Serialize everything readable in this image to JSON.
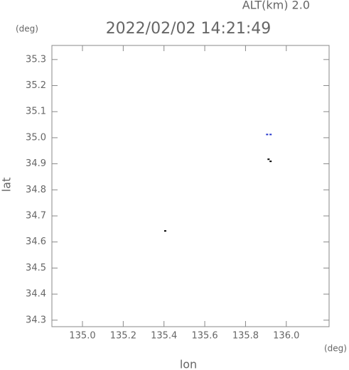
{
  "chart_data": {
    "type": "scatter",
    "title": "2022/02/02 14:21:49",
    "subtitle": "ALT(km) 2.0",
    "x_label": "lon",
    "y_label": "lat",
    "x_unit": "(deg)",
    "y_unit": "(deg)",
    "xlim": [
      134.85,
      136.21
    ],
    "ylim": [
      34.275,
      35.354
    ],
    "xticks": [
      {
        "value": 135,
        "label": "135.0"
      },
      135.2,
      135.4,
      135.6,
      135.8,
      {
        "value": 136,
        "label": "136.0"
      }
    ],
    "yticks": [
      34.3,
      34.4,
      34.5,
      34.6,
      34.7,
      34.8,
      34.9,
      {
        "value": 35,
        "label": "35.0"
      },
      35.1,
      35.2,
      35.3
    ],
    "series": [
      {
        "color": "#2233cc",
        "x": [
          135.906,
          135.923
        ],
        "y": [
          35.011,
          35.011
        ]
      },
      {
        "color": "#000000",
        "x": [
          135.913,
          135.923,
          135.406
        ],
        "y": [
          34.916,
          34.908,
          34.641
        ]
      }
    ]
  }
}
